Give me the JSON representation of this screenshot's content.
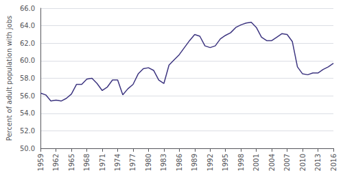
{
  "chart_data": {
    "type": "line",
    "ylabel": "Percent of adult population with jobs",
    "x": [
      1959,
      1960,
      1961,
      1962,
      1963,
      1964,
      1965,
      1966,
      1967,
      1968,
      1969,
      1970,
      1971,
      1972,
      1973,
      1974,
      1975,
      1976,
      1977,
      1978,
      1979,
      1980,
      1981,
      1982,
      1983,
      1984,
      1985,
      1986,
      1987,
      1988,
      1989,
      1990,
      1991,
      1992,
      1993,
      1994,
      1995,
      1996,
      1997,
      1998,
      1999,
      2000,
      2001,
      2002,
      2003,
      2004,
      2005,
      2006,
      2007,
      2008,
      2009,
      2010,
      2011,
      2012,
      2013,
      2014,
      2015,
      2016
    ],
    "values": [
      56.3,
      56.1,
      55.4,
      55.5,
      55.4,
      55.7,
      56.2,
      57.3,
      57.3,
      57.9,
      58.0,
      57.4,
      56.6,
      57.0,
      57.8,
      57.8,
      56.1,
      56.8,
      57.3,
      58.5,
      59.1,
      59.2,
      58.9,
      57.8,
      57.4,
      59.5,
      60.1,
      60.7,
      61.5,
      62.3,
      63.0,
      62.8,
      61.7,
      61.5,
      61.7,
      62.5,
      62.9,
      63.2,
      63.8,
      64.1,
      64.3,
      64.4,
      63.8,
      62.7,
      62.3,
      62.3,
      62.7,
      63.1,
      63.0,
      62.2,
      59.3,
      58.5,
      58.4,
      58.6,
      58.6,
      59.0,
      59.3,
      59.7
    ],
    "color": "#3d3580",
    "xlim": [
      1959,
      2016
    ],
    "xticks": [
      1959,
      1962,
      1965,
      1968,
      1971,
      1974,
      1977,
      1980,
      1983,
      1986,
      1989,
      1992,
      1995,
      1998,
      2001,
      2004,
      2007,
      2010,
      2013,
      2016
    ],
    "ylim": [
      50.0,
      66.0
    ],
    "yticks": [
      {
        "value": 50.0,
        "label": "50.0"
      },
      {
        "value": 52.0,
        "label": "52.0"
      },
      {
        "value": 54.0,
        "label": "54.0"
      },
      {
        "value": 56.0,
        "label": "56.0"
      },
      {
        "value": 58.0,
        "label": "58.0"
      },
      {
        "value": 60.0,
        "label": "60.0"
      },
      {
        "value": 62.0,
        "label": "62.0"
      },
      {
        "value": 64.0,
        "label": "64.0"
      },
      {
        "value": 66.0,
        "label": "66.0"
      }
    ],
    "grid": true
  }
}
